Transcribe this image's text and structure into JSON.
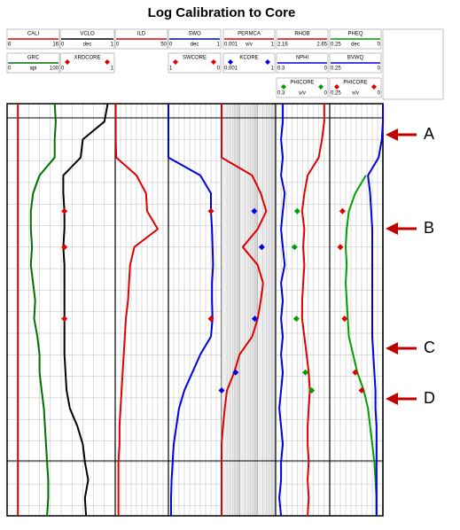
{
  "chart_data": {
    "type": "log",
    "title": "Log Calibration to Core",
    "curves": [
      {
        "name": "CALI",
        "color": "#e00000",
        "xlim": [
          6,
          16
        ],
        "style": "line",
        "values": [
          7,
          7,
          7,
          7,
          7,
          7,
          7,
          7,
          7,
          7,
          7,
          7,
          7,
          7,
          7,
          7,
          7,
          7,
          7,
          7,
          7,
          7,
          7,
          7
        ]
      },
      {
        "name": "GRC",
        "color": "#007000",
        "xlim": [
          0,
          100
        ],
        "unit": "api",
        "style": "line",
        "values": [
          44,
          45,
          44,
          44,
          30,
          24,
          22,
          22,
          23,
          22,
          24,
          26,
          25,
          28,
          30,
          30,
          32,
          34,
          35,
          36,
          37,
          38,
          38,
          37
        ]
      },
      {
        "name": "VCLO",
        "color": "#000000",
        "xlim": [
          0,
          1
        ],
        "unit": "dec",
        "style": "line",
        "values": [
          0.93,
          0.9,
          0.7,
          0.68,
          0.52,
          0.52,
          0.53,
          0.53,
          0.52,
          0.53,
          0.53,
          0.53,
          0.53,
          0.53,
          0.53,
          0.54,
          0.55,
          0.58,
          0.65,
          0.7,
          0.72,
          0.75,
          0.72,
          0.73
        ]
      },
      {
        "name": "XRDCORE",
        "color": "#e00000",
        "xlim": [
          0,
          1
        ],
        "style": "diamond",
        "values": [
          null,
          null,
          null,
          null,
          null,
          null,
          0.53,
          null,
          0.53,
          null,
          null,
          null,
          0.53,
          null,
          null,
          null,
          null,
          null,
          null,
          null,
          null,
          null,
          null,
          null
        ]
      },
      {
        "name": "ILD",
        "color": "#e00000",
        "xlim": [
          0,
          50
        ],
        "style": "line",
        "values": [
          0.5,
          0.5,
          0.5,
          1,
          20,
          29,
          30,
          40,
          18,
          14,
          13,
          12,
          10,
          9,
          8,
          7,
          6,
          5,
          4,
          4,
          3,
          3,
          3,
          3
        ]
      },
      {
        "name": "SWO",
        "color": "#0000e0",
        "xlim": [
          0,
          1
        ],
        "unit": "dec",
        "style": "line",
        "values": [
          0,
          0,
          0,
          0,
          0.6,
          0.8,
          0.8,
          0.82,
          0.83,
          0.84,
          0.82,
          0.82,
          0.83,
          0.8,
          0.6,
          0.45,
          0.3,
          0.2,
          0.15,
          0.1,
          0.08,
          0.06,
          0.05,
          0.05
        ]
      },
      {
        "name": "SWCORE",
        "color": "#e00000",
        "xlim": [
          1,
          0
        ],
        "style": "diamond",
        "values": [
          null,
          null,
          null,
          null,
          null,
          null,
          0.2,
          null,
          null,
          null,
          null,
          null,
          0.2,
          null,
          null,
          null,
          null,
          null,
          null,
          null,
          null,
          null,
          null,
          null
        ]
      },
      {
        "name": "PERMCA",
        "color": "#e00000",
        "xlim": [
          0.001,
          1
        ],
        "unit": "v/v",
        "log": true,
        "style": "line",
        "values": [
          0.001,
          0.001,
          0.001,
          0.001,
          0.05,
          0.15,
          0.3,
          0.1,
          0.015,
          0.1,
          0.2,
          0.15,
          0.1,
          0.05,
          0.01,
          0.005,
          0.002,
          0.0015,
          0.0012,
          0.001,
          0.001,
          0.001,
          0.001,
          0.001
        ]
      },
      {
        "name": "KCORE",
        "color": "#0000e0",
        "xlim": [
          0.001,
          1
        ],
        "log": true,
        "style": "diamond",
        "values": [
          null,
          null,
          null,
          null,
          null,
          null,
          0.065,
          null,
          0.17,
          null,
          null,
          null,
          0.07,
          null,
          null,
          0.006,
          0.001,
          null,
          null,
          null,
          null,
          null,
          null,
          null
        ]
      },
      {
        "name": "RHOB",
        "color": "#e00000",
        "xlim": [
          2.16,
          2.65
        ],
        "style": "line",
        "values": [
          2.6,
          2.6,
          2.58,
          2.55,
          2.45,
          2.42,
          2.4,
          2.42,
          2.41,
          2.42,
          2.41,
          2.4,
          2.4,
          2.42,
          2.44,
          2.46,
          2.47,
          2.46,
          2.45,
          2.45,
          2.46,
          2.45,
          2.46,
          2.45
        ]
      },
      {
        "name": "NPHI",
        "color": "#0000e0",
        "xlim": [
          0.3,
          0
        ],
        "style": "line",
        "values": [
          0.26,
          0.26,
          0.27,
          0.26,
          0.27,
          0.25,
          0.26,
          0.27,
          0.26,
          0.25,
          0.27,
          0.26,
          0.27,
          0.26,
          0.27,
          0.26,
          0.27,
          0.28,
          0.27,
          0.26,
          0.27,
          0.27,
          0.28,
          0.27
        ]
      },
      {
        "name": "PHICORE",
        "color": "#00a000",
        "xlim": [
          0.3,
          0
        ],
        "unit": "v/v",
        "style": "diamond",
        "values": [
          null,
          null,
          null,
          null,
          null,
          null,
          0.18,
          null,
          0.195,
          null,
          null,
          null,
          0.185,
          null,
          null,
          0.135,
          0.1,
          null,
          null,
          null,
          null,
          null,
          null,
          null
        ]
      },
      {
        "name": "PHEQ",
        "color": "#00a000",
        "xlim": [
          0.25,
          0
        ],
        "unit": "dec",
        "style": "line",
        "values": [
          null,
          null,
          null,
          null,
          0.08,
          0.13,
          0.16,
          0.17,
          0.175,
          0.17,
          0.175,
          0.17,
          0.165,
          0.16,
          0.14,
          0.12,
          0.09,
          0.07,
          0.06,
          0.05,
          0.04,
          0.035,
          0.03,
          0.03
        ]
      },
      {
        "name": "BVWQ",
        "color": "#0000e0",
        "xlim": [
          0.25,
          0
        ],
        "style": "line",
        "values": [
          0,
          0,
          0.005,
          0.02,
          0.07,
          0.06,
          0.055,
          0.05,
          0.05,
          0.05,
          0.05,
          0.05,
          0.05,
          0.05,
          0.045,
          0.04,
          0.035,
          0.035,
          0.03,
          0.03,
          0.03,
          0.03,
          0.03,
          0.03
        ]
      },
      {
        "name": "PHICORE",
        "color": "#e00000",
        "xlim": [
          0.25,
          0
        ],
        "unit": "v/v",
        "style": "diamond",
        "values": [
          null,
          null,
          null,
          null,
          null,
          null,
          0.19,
          null,
          0.2,
          null,
          null,
          null,
          0.18,
          null,
          null,
          0.13,
          0.1,
          null,
          null,
          null,
          null,
          null,
          null,
          null
        ]
      }
    ],
    "annotations": [
      "A",
      "B",
      "C",
      "D"
    ]
  }
}
